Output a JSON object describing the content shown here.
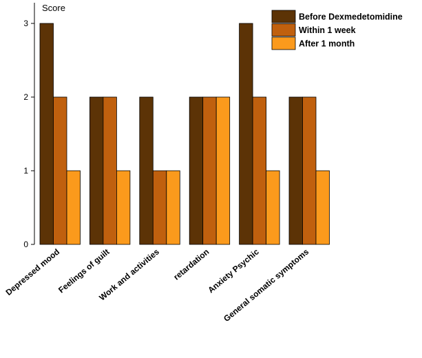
{
  "chart_data": {
    "type": "bar",
    "title": "",
    "xlabel": "",
    "ylabel": "Score",
    "ylim": [
      0,
      3.3
    ],
    "yticks": [
      0,
      1,
      2,
      3
    ],
    "grid": false,
    "legend_position": "top-right",
    "categories": [
      "Depressed mood",
      "Feelings of guilt",
      "Work and activities",
      "retardation",
      "Anxiety Psychic",
      "General somatic symptoms"
    ],
    "series": [
      {
        "name": "Before Dexmedetomidine",
        "color": "#5c3306",
        "values": [
          3,
          2,
          2,
          2,
          3,
          2
        ]
      },
      {
        "name": "Within 1 week",
        "color": "#c0600e",
        "values": [
          2,
          2,
          1,
          2,
          2,
          2
        ]
      },
      {
        "name": "After 1 month",
        "color": "#fb9a1c",
        "values": [
          1,
          1,
          1,
          2,
          1,
          1
        ]
      }
    ]
  }
}
